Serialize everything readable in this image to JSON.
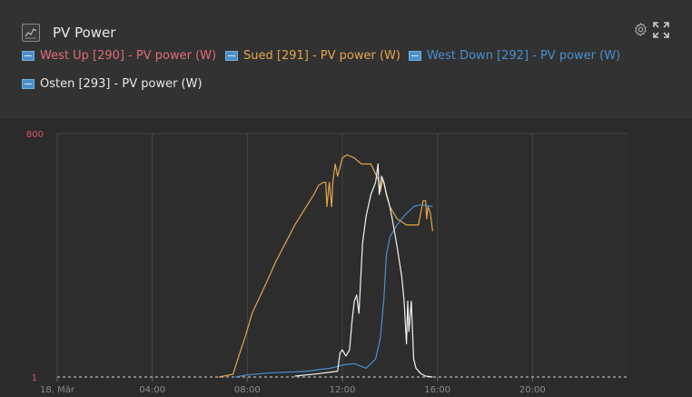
{
  "panel": {
    "title": "PV Power",
    "title_icon": "chart-line-icon",
    "settings_icon": "gear-icon",
    "fullscreen_icon": "expand-icon"
  },
  "legend": [
    {
      "label": "West Up [290]  - PV power (W)",
      "color": "#e06c75"
    },
    {
      "label": "Sued [291]  - PV power (W)",
      "color": "#e5a54b"
    },
    {
      "label": "West Down [292]  - PV power (W)",
      "color": "#4a8fd0"
    },
    {
      "label": "Osten [293]  - PV power (W)",
      "color": "#f2f2f2"
    }
  ],
  "chart_data": {
    "type": "line",
    "title": "PV Power",
    "x_tick_labels": [
      "18. Mär",
      "04:00",
      "08:00",
      "12:00",
      "16:00",
      "20:00"
    ],
    "x_ticks_hours": [
      0,
      4,
      8,
      12,
      16,
      20
    ],
    "xlim_hours": [
      0,
      24
    ],
    "y_tick_labels": [
      "800",
      "1"
    ],
    "ylim": [
      1,
      800
    ],
    "grid": true,
    "series": [
      {
        "name": "West Up [290]  - PV power (W)",
        "color": "#e06c75",
        "points": []
      },
      {
        "name": "Sued [291]  - PV power (W)",
        "color": "#e5a54b",
        "points": [
          [
            6.8,
            1
          ],
          [
            7.4,
            10
          ],
          [
            7.6,
            60
          ],
          [
            7.9,
            130
          ],
          [
            8.2,
            210
          ],
          [
            8.5,
            260
          ],
          [
            8.8,
            310
          ],
          [
            9.2,
            380
          ],
          [
            9.6,
            440
          ],
          [
            10.0,
            500
          ],
          [
            10.4,
            550
          ],
          [
            10.8,
            600
          ],
          [
            11.0,
            630
          ],
          [
            11.2,
            640
          ],
          [
            11.3,
            640
          ],
          [
            11.35,
            560
          ],
          [
            11.45,
            640
          ],
          [
            11.55,
            560
          ],
          [
            11.6,
            640
          ],
          [
            11.7,
            700
          ],
          [
            11.8,
            660
          ],
          [
            12.0,
            720
          ],
          [
            12.2,
            730
          ],
          [
            12.5,
            720
          ],
          [
            12.8,
            700
          ],
          [
            13.2,
            700
          ],
          [
            13.5,
            650
          ],
          [
            13.6,
            610
          ],
          [
            13.7,
            650
          ],
          [
            13.8,
            620
          ],
          [
            14.0,
            560
          ],
          [
            14.3,
            520
          ],
          [
            14.7,
            500
          ],
          [
            15.2,
            500
          ],
          [
            15.4,
            580
          ],
          [
            15.5,
            580
          ],
          [
            15.55,
            520
          ],
          [
            15.6,
            560
          ],
          [
            15.7,
            540
          ],
          [
            15.8,
            480
          ]
        ]
      },
      {
        "name": "West Down [292]  - PV power (W)",
        "color": "#4a8fd0",
        "points": [
          [
            7.5,
            1
          ],
          [
            8.0,
            8
          ],
          [
            9.0,
            15
          ],
          [
            10.0,
            18
          ],
          [
            10.5,
            20
          ],
          [
            11.0,
            25
          ],
          [
            11.5,
            30
          ],
          [
            12.0,
            40
          ],
          [
            12.5,
            45
          ],
          [
            13.0,
            30
          ],
          [
            13.4,
            60
          ],
          [
            13.6,
            130
          ],
          [
            13.75,
            260
          ],
          [
            13.85,
            400
          ],
          [
            14.0,
            460
          ],
          [
            14.3,
            500
          ],
          [
            14.6,
            530
          ],
          [
            15.0,
            560
          ],
          [
            15.2,
            565
          ],
          [
            15.5,
            565
          ],
          [
            15.8,
            560
          ]
        ]
      },
      {
        "name": "Osten [293]  - PV power (W)",
        "color": "#f2f2f2",
        "points": [
          [
            10.0,
            4
          ],
          [
            11.0,
            12
          ],
          [
            11.8,
            20
          ],
          [
            11.9,
            80
          ],
          [
            12.0,
            90
          ],
          [
            12.15,
            70
          ],
          [
            12.3,
            90
          ],
          [
            12.4,
            180
          ],
          [
            12.5,
            250
          ],
          [
            12.6,
            270
          ],
          [
            12.7,
            210
          ],
          [
            12.85,
            440
          ],
          [
            13.0,
            530
          ],
          [
            13.2,
            600
          ],
          [
            13.4,
            640
          ],
          [
            13.5,
            700
          ],
          [
            13.55,
            600
          ],
          [
            13.65,
            660
          ],
          [
            13.75,
            640
          ],
          [
            13.85,
            600
          ],
          [
            14.0,
            560
          ],
          [
            14.1,
            520
          ],
          [
            14.3,
            430
          ],
          [
            14.5,
            330
          ],
          [
            14.6,
            250
          ],
          [
            14.7,
            110
          ],
          [
            14.75,
            250
          ],
          [
            14.8,
            150
          ],
          [
            14.9,
            250
          ],
          [
            15.0,
            60
          ],
          [
            15.1,
            30
          ],
          [
            15.3,
            12
          ],
          [
            15.5,
            4
          ],
          [
            15.8,
            1
          ]
        ]
      }
    ]
  }
}
